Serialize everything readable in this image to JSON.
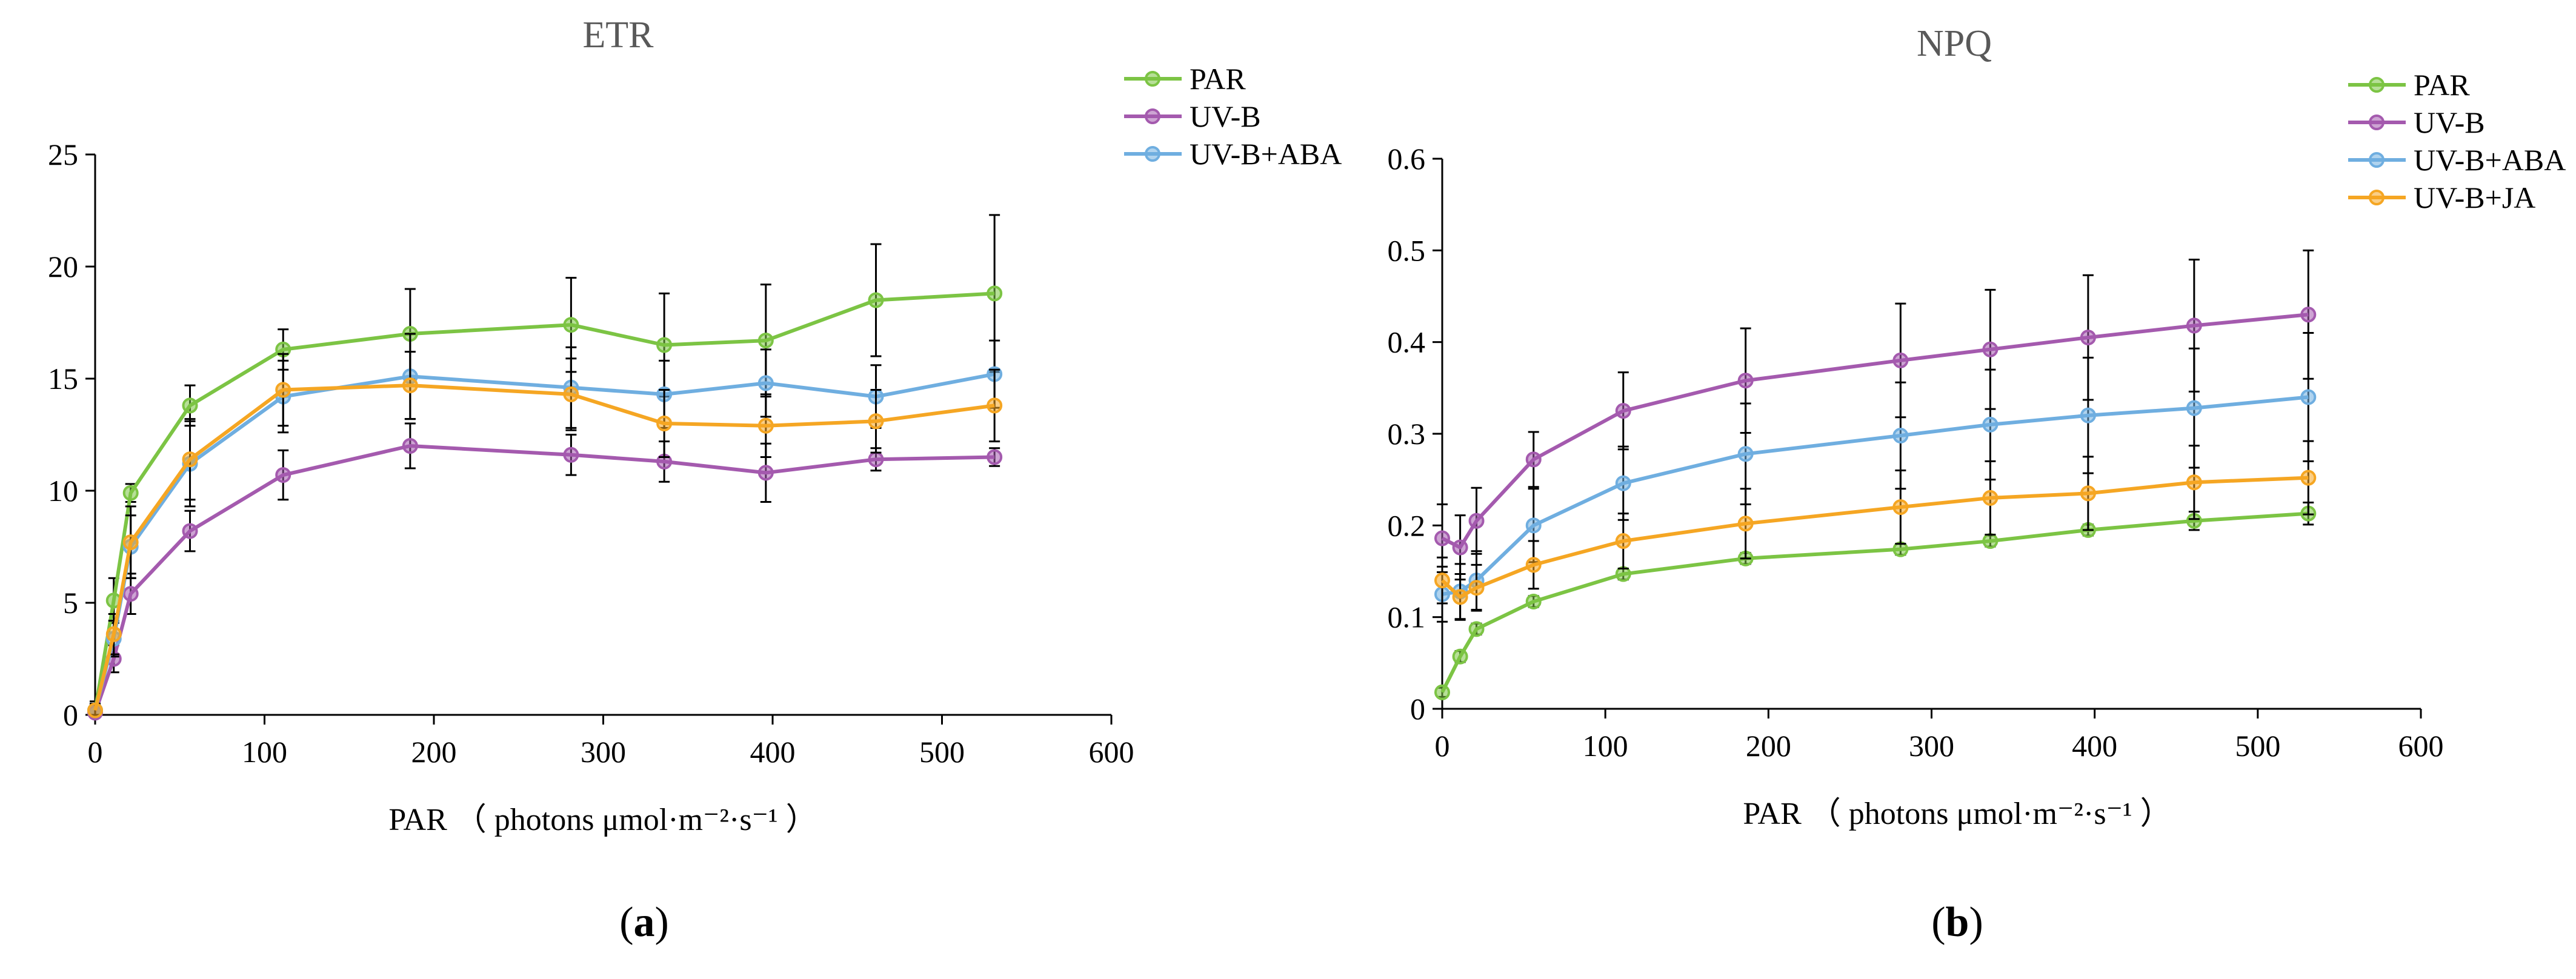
{
  "colors": {
    "PAR": "#7CC444",
    "UV-B": "#A45AAE",
    "UV-B+ABA": "#6FAEE0",
    "UV-B+JA": "#F5A623",
    "axis": "#000000",
    "title": "#595959"
  },
  "chart_data": [
    {
      "type": "line",
      "panel": "(a)",
      "panel_letter": "a",
      "title": "ETR",
      "xlabel": "PAR （ photons μmol·m⁻²·s⁻¹ ）",
      "ylabel": "",
      "xlim": [
        0,
        600
      ],
      "ylim": [
        0,
        25
      ],
      "xticks": [
        0,
        100,
        200,
        300,
        400,
        500,
        600
      ],
      "yticks": [
        0,
        5,
        10,
        15,
        20,
        25
      ],
      "legend_position": "top-right",
      "grid": false,
      "x": [
        0,
        11,
        21,
        56,
        111,
        186,
        281,
        336,
        396,
        461,
        531
      ],
      "legend": [
        "PAR",
        "UV-B",
        "UV-B+ABA"
      ],
      "series": [
        {
          "name": "PAR",
          "values": [
            0.2,
            5.1,
            9.9,
            13.8,
            16.3,
            17.0,
            17.4,
            16.5,
            16.7,
            18.5,
            18.8
          ],
          "errors": [
            0.4,
            1.0,
            0.4,
            0.9,
            0.9,
            2.0,
            2.1,
            2.3,
            2.5,
            2.5,
            3.5
          ]
        },
        {
          "name": "UV-B",
          "values": [
            0.1,
            2.5,
            5.4,
            8.2,
            10.7,
            12.0,
            11.6,
            11.3,
            10.8,
            11.4,
            11.5
          ],
          "errors": [
            0.3,
            0.6,
            0.9,
            0.9,
            1.1,
            1.0,
            0.9,
            0.9,
            1.3,
            0.5,
            0.4
          ]
        },
        {
          "name": "UV-B+ABA",
          "values": [
            0.2,
            3.4,
            7.5,
            11.2,
            14.2,
            15.1,
            14.6,
            14.3,
            14.8,
            14.2,
            15.2
          ],
          "errors": [
            0.3,
            0.8,
            1.4,
            1.9,
            1.6,
            1.9,
            1.8,
            1.5,
            1.5,
            1.4,
            1.5
          ]
        },
        {
          "name": "UV-B+JA",
          "values": [
            0.2,
            3.6,
            7.7,
            11.4,
            14.5,
            14.7,
            14.3,
            13.0,
            12.9,
            13.1,
            13.8
          ],
          "errors": [
            0.3,
            0.9,
            1.6,
            1.8,
            1.6,
            1.5,
            1.6,
            1.5,
            1.4,
            1.4,
            1.6
          ]
        }
      ]
    },
    {
      "type": "line",
      "panel": "(b)",
      "panel_letter": "b",
      "title": "NPQ",
      "xlabel": "PAR （ photons μmol·m⁻²·s⁻¹ ）",
      "ylabel": "",
      "xlim": [
        0,
        600
      ],
      "ylim": [
        0,
        0.6
      ],
      "xticks": [
        0,
        100,
        200,
        300,
        400,
        500,
        600
      ],
      "yticks": [
        0,
        0.1,
        0.2,
        0.3,
        0.4,
        0.5,
        0.6
      ],
      "legend_position": "top-right",
      "grid": false,
      "x": [
        0,
        11,
        21,
        56,
        111,
        186,
        281,
        336,
        396,
        461,
        531
      ],
      "legend": [
        "PAR",
        "UV-B",
        "UV-B+ABA",
        "UV-B+JA"
      ],
      "series": [
        {
          "name": "PAR",
          "values": [
            0.018,
            0.057,
            0.087,
            0.117,
            0.147,
            0.164,
            0.174,
            0.183,
            0.195,
            0.205,
            0.213
          ],
          "errors": [
            0.005,
            0.006,
            0.006,
            0.006,
            0.006,
            0.006,
            0.006,
            0.006,
            0.006,
            0.01,
            0.012
          ]
        },
        {
          "name": "UV-B",
          "values": [
            0.186,
            0.176,
            0.205,
            0.272,
            0.325,
            0.358,
            0.38,
            0.392,
            0.405,
            0.418,
            0.43
          ],
          "errors": [
            0.037,
            0.035,
            0.036,
            0.03,
            0.042,
            0.057,
            0.062,
            0.065,
            0.068,
            0.072,
            0.07
          ]
        },
        {
          "name": "UV-B+ABA",
          "values": [
            0.125,
            0.128,
            0.14,
            0.2,
            0.246,
            0.278,
            0.298,
            0.31,
            0.32,
            0.328,
            0.34
          ],
          "errors": [
            0.03,
            0.03,
            0.032,
            0.04,
            0.04,
            0.055,
            0.058,
            0.06,
            0.063,
            0.065,
            0.07
          ]
        },
        {
          "name": "UV-B+JA",
          "values": [
            0.14,
            0.122,
            0.132,
            0.157,
            0.183,
            0.202,
            0.22,
            0.23,
            0.235,
            0.247,
            0.252
          ],
          "errors": [
            0.025,
            0.025,
            0.025,
            0.026,
            0.03,
            0.038,
            0.04,
            0.04,
            0.04,
            0.04,
            0.04
          ]
        }
      ]
    }
  ]
}
